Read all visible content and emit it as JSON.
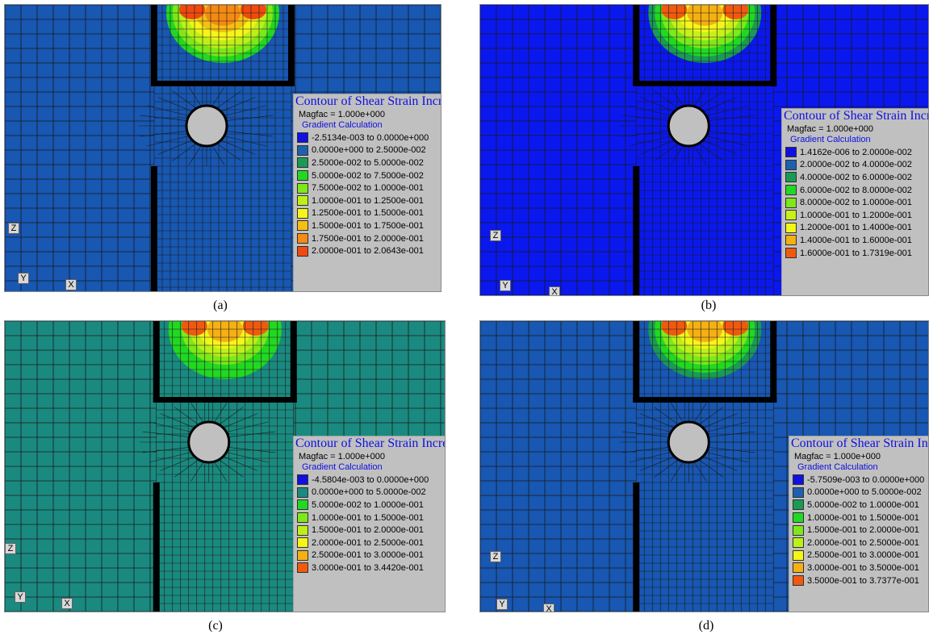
{
  "panels": [
    {
      "id": "a",
      "caption": "(a)",
      "background": "#1857b2",
      "legend": {
        "title": "Contour of Shear Strain Increment",
        "magfac": "Magfac =  1.000e+000",
        "method": "Gradient Calculation",
        "ranges": [
          {
            "label": "-2.5134e-003 to  0.0000e+000",
            "color": "#1010e0"
          },
          {
            "label": "0.0000e+000 to  2.5000e-002",
            "color": "#1f5fb0"
          },
          {
            "label": "2.5000e-002 to  5.0000e-002",
            "color": "#1a9a55"
          },
          {
            "label": "5.0000e-002 to  7.5000e-002",
            "color": "#22d822"
          },
          {
            "label": "7.5000e-002 to  1.0000e-001",
            "color": "#7ee81a"
          },
          {
            "label": "1.0000e-001 to  1.2500e-001",
            "color": "#bdf01a"
          },
          {
            "label": "1.2500e-001 to  1.5000e-001",
            "color": "#f5f51a"
          },
          {
            "label": "1.5000e-001 to  1.7500e-001",
            "color": "#f5c014"
          },
          {
            "label": "1.7500e-001 to  2.0000e-001",
            "color": "#f58a14"
          },
          {
            "label": "2.0000e-001 to  2.0643e-001",
            "color": "#f04a10"
          }
        ]
      },
      "axes": {
        "z": "Z",
        "y": "Y",
        "x": "X"
      }
    },
    {
      "id": "b",
      "caption": "(b)",
      "background": "#0a18ee",
      "legend": {
        "title": "Contour of Shear Strain Increment",
        "magfac": "Magfac =  1.000e+000",
        "method": "Gradient Calculation",
        "ranges": [
          {
            "label": "1.4162e-006 to  2.0000e-002",
            "color": "#1010e0"
          },
          {
            "label": "2.0000e-002 to  4.0000e-002",
            "color": "#1f5fb0"
          },
          {
            "label": "4.0000e-002 to  6.0000e-002",
            "color": "#1a9a55"
          },
          {
            "label": "6.0000e-002 to  8.0000e-002",
            "color": "#22d822"
          },
          {
            "label": "8.0000e-002 to  1.0000e-001",
            "color": "#7ee81a"
          },
          {
            "label": "1.0000e-001 to  1.2000e-001",
            "color": "#c8f01a"
          },
          {
            "label": "1.2000e-001 to  1.4000e-001",
            "color": "#f5f51a"
          },
          {
            "label": "1.4000e-001 to  1.6000e-001",
            "color": "#f5b014"
          },
          {
            "label": "1.6000e-001 to  1.7319e-001",
            "color": "#f05a10"
          }
        ]
      },
      "axes": {
        "z": "Z",
        "y": "Y",
        "x": "X"
      }
    },
    {
      "id": "c",
      "caption": "(c)",
      "background": "#1a8a80",
      "legend": {
        "title": "Contour of Shear Strain Increment",
        "magfac": "Magfac =  1.000e+000",
        "method": "Gradient Calculation",
        "ranges": [
          {
            "label": "-4.5804e-003 to  0.0000e+000",
            "color": "#1010e0"
          },
          {
            "label": "0.0000e+000 to  5.0000e-002",
            "color": "#1a8a80"
          },
          {
            "label": "5.0000e-002 to  1.0000e-001",
            "color": "#22d822"
          },
          {
            "label": "1.0000e-001 to  1.5000e-001",
            "color": "#7ee81a"
          },
          {
            "label": "1.5000e-001 to  2.0000e-001",
            "color": "#bdf01a"
          },
          {
            "label": "2.0000e-001 to  2.5000e-001",
            "color": "#f5f51a"
          },
          {
            "label": "2.5000e-001 to  3.0000e-001",
            "color": "#f5b014"
          },
          {
            "label": "3.0000e-001 to  3.4420e-001",
            "color": "#f05a10"
          }
        ]
      },
      "axes": {
        "z": "Z",
        "y": "Y",
        "x": "X"
      }
    },
    {
      "id": "d",
      "caption": "(d)",
      "background": "#1857b2",
      "legend": {
        "title": "Contour of Shear Strain Increment",
        "magfac": "Magfac =  1.000e+000",
        "method": "Gradient Calculation",
        "ranges": [
          {
            "label": "-5.7509e-003 to  0.0000e+000",
            "color": "#1010e0"
          },
          {
            "label": "0.0000e+000 to  5.0000e-002",
            "color": "#1f5fb0"
          },
          {
            "label": "5.0000e-002 to  1.0000e-001",
            "color": "#1a9a55"
          },
          {
            "label": "1.0000e-001 to  1.5000e-001",
            "color": "#22d822"
          },
          {
            "label": "1.5000e-001 to  2.0000e-001",
            "color": "#7ee81a"
          },
          {
            "label": "2.0000e-001 to  2.5000e-001",
            "color": "#bdf01a"
          },
          {
            "label": "2.5000e-001 to  3.0000e-001",
            "color": "#f5f51a"
          },
          {
            "label": "3.0000e-001 to  3.5000e-001",
            "color": "#f5b014"
          },
          {
            "label": "3.5000e-001 to  3.7377e-001",
            "color": "#f05a10"
          }
        ]
      },
      "axes": {
        "z": "Z",
        "y": "Y",
        "x": "X"
      }
    }
  ]
}
